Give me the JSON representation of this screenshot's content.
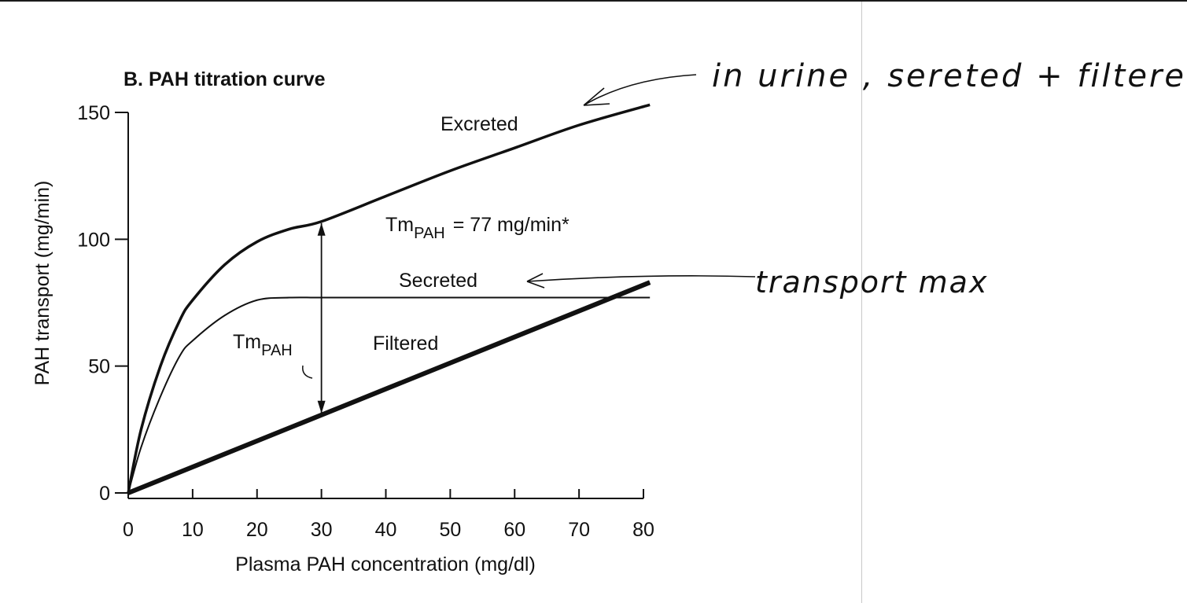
{
  "chart_data": {
    "type": "line",
    "title": "B.  PAH  titration curve",
    "xlabel": "Plasma PAH concentration (mg/dl)",
    "ylabel": "PAH transport (mg/min)",
    "xlim": [
      0,
      80
    ],
    "ylim": [
      0,
      150
    ],
    "x_ticks": [
      "0",
      "10",
      "20",
      "30",
      "40",
      "50",
      "60",
      "70",
      "80"
    ],
    "y_ticks": [
      "0",
      "50",
      "100",
      "150"
    ],
    "grid": false,
    "series": [
      {
        "name": "Excreted",
        "x": [
          0,
          2,
          5,
          8,
          10,
          15,
          20,
          25,
          30,
          40,
          50,
          60,
          70,
          81
        ],
        "y": [
          0,
          25,
          50,
          68,
          76,
          90,
          99,
          104,
          107,
          117,
          127,
          136,
          145,
          153
        ]
      },
      {
        "name": "Secreted",
        "x": [
          0,
          2,
          5,
          8,
          10,
          15,
          20,
          25,
          30,
          40,
          50,
          60,
          70,
          81
        ],
        "y": [
          0,
          18,
          38,
          54,
          60,
          70,
          76,
          77,
          77,
          77,
          77,
          77,
          77,
          77
        ]
      },
      {
        "name": "Filtered",
        "x": [
          0,
          81
        ],
        "y": [
          0,
          83
        ]
      }
    ],
    "annotations": {
      "tm_equation_main": "Tm",
      "tm_equation_sub": "PAH",
      "tm_equation_rest": "= 77 mg/min*",
      "tm_label_main": "Tm",
      "tm_label_sub": "PAH",
      "tm_arrow_x": 30
    }
  },
  "handwritten_notes": {
    "excreted_note": "in urine , sereted + filtered",
    "secreted_note": "transport max"
  },
  "colors": {
    "ink": "#111111",
    "divider": "#c8c8c8"
  }
}
